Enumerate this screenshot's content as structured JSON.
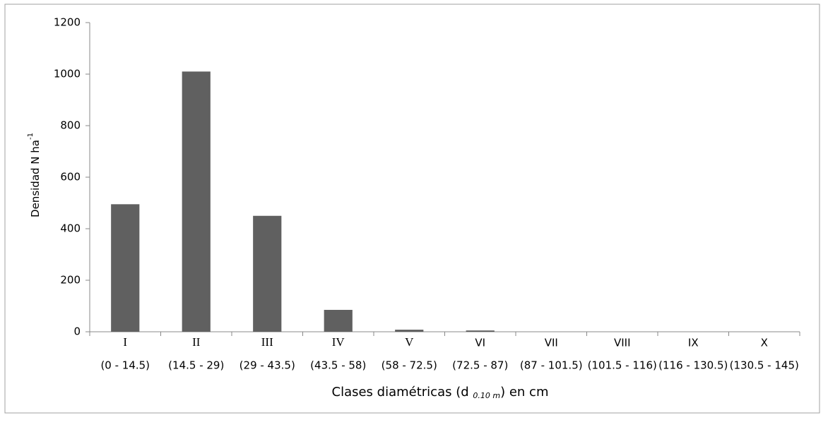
{
  "chart_data": {
    "type": "bar",
    "y_label": {
      "text": "Densidad N ha",
      "superscript": "-1"
    },
    "x_label": {
      "before": "Clases diamétricas (d ",
      "subscript": "0.10 m",
      "after": ") en cm"
    },
    "categories": [
      "I",
      "II",
      "III",
      "IV",
      "V",
      "VI",
      "VII",
      "VIII",
      "IX",
      "X"
    ],
    "ranges": [
      "(0 - 14.5)",
      "(14.5 - 29)",
      "(29 - 43.5)",
      "(43.5 - 58)",
      "(58 - 72.5)",
      "(72.5 - 87)",
      "(87 - 101.5)",
      "(101.5 - 116)",
      "(116 - 130.5)",
      "(130.5 - 145)"
    ],
    "values": [
      495,
      1010,
      450,
      85,
      8,
      5,
      0,
      0,
      0,
      0
    ],
    "color": "#606060",
    "ylim": [
      0,
      1200
    ],
    "yticks": [
      0,
      200,
      400,
      600,
      800,
      1000,
      1200
    ]
  }
}
